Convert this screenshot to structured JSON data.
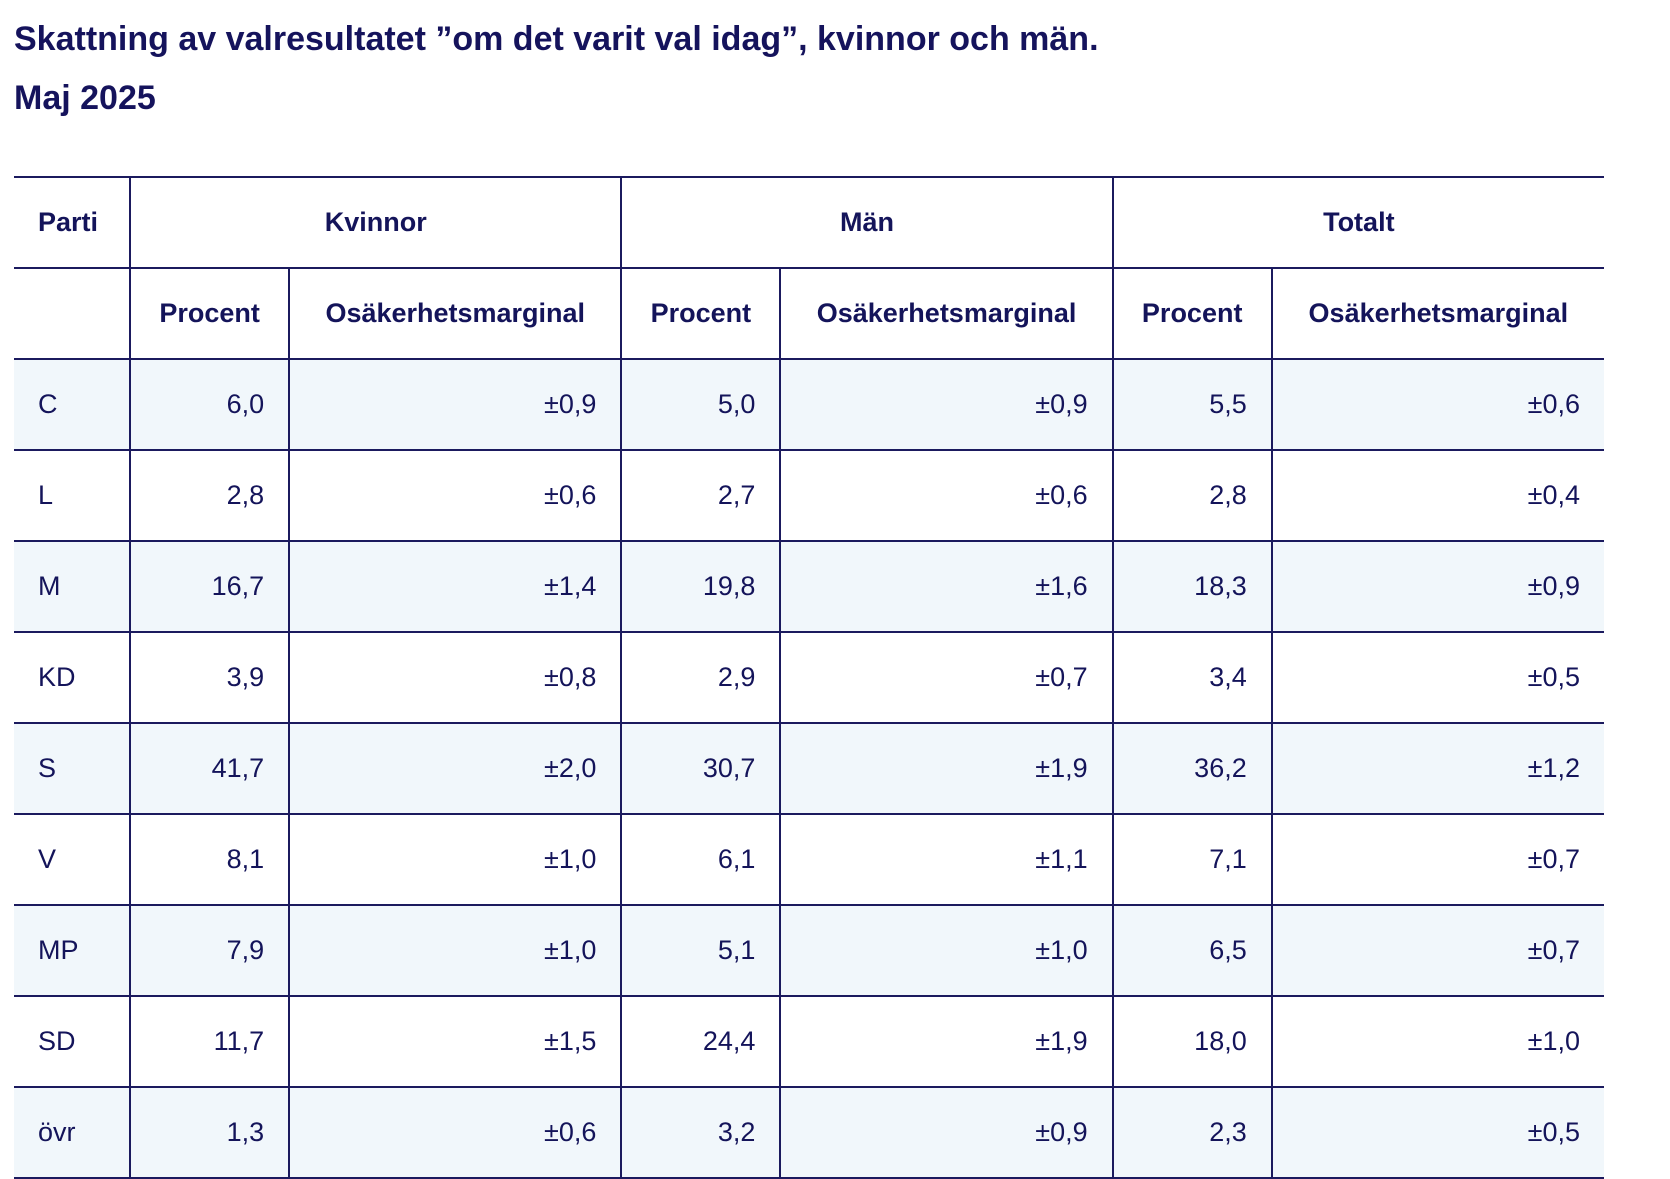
{
  "title": {
    "line1": "Skattning av valresultatet ”om det varit val idag”, kvinnor och män.",
    "line2": "Maj 2025"
  },
  "table": {
    "headers": {
      "parti": "Parti",
      "groups": [
        "Kvinnor",
        "Män",
        "Totalt"
      ],
      "sub": [
        "Procent",
        "Osäkerhetsmarginal",
        "Procent",
        "Osäkerhetsmarginal",
        "Procent",
        "Osäkerhetsmarginal"
      ]
    },
    "rows": [
      {
        "party": "C",
        "values": [
          "6,0",
          "±0,9",
          "5,0",
          "±0,9",
          "5,5",
          "±0,6"
        ]
      },
      {
        "party": "L",
        "values": [
          "2,8",
          "±0,6",
          "2,7",
          "±0,6",
          "2,8",
          "±0,4"
        ]
      },
      {
        "party": "M",
        "values": [
          "16,7",
          "±1,4",
          "19,8",
          "±1,6",
          "18,3",
          "±0,9"
        ]
      },
      {
        "party": "KD",
        "values": [
          "3,9",
          "±0,8",
          "2,9",
          "±0,7",
          "3,4",
          "±0,5"
        ]
      },
      {
        "party": "S",
        "values": [
          "41,7",
          "±2,0",
          "30,7",
          "±1,9",
          "36,2",
          "±1,2"
        ]
      },
      {
        "party": "V",
        "values": [
          "8,1",
          "±1,0",
          "6,1",
          "±1,1",
          "7,1",
          "±0,7"
        ]
      },
      {
        "party": "MP",
        "values": [
          "7,9",
          "±1,0",
          "5,1",
          "±1,0",
          "6,5",
          "±0,7"
        ]
      },
      {
        "party": "SD",
        "values": [
          "11,7",
          "±1,5",
          "24,4",
          "±1,9",
          "18,0",
          "±1,0"
        ]
      },
      {
        "party": "övr",
        "values": [
          "1,3",
          "±0,6",
          "3,2",
          "±0,9",
          "2,3",
          "±0,5"
        ]
      }
    ]
  },
  "colors": {
    "text": "#14145a",
    "rule": "#1b1a5e",
    "shaded_row": "#f1f7fb",
    "background": "#ffffff"
  }
}
